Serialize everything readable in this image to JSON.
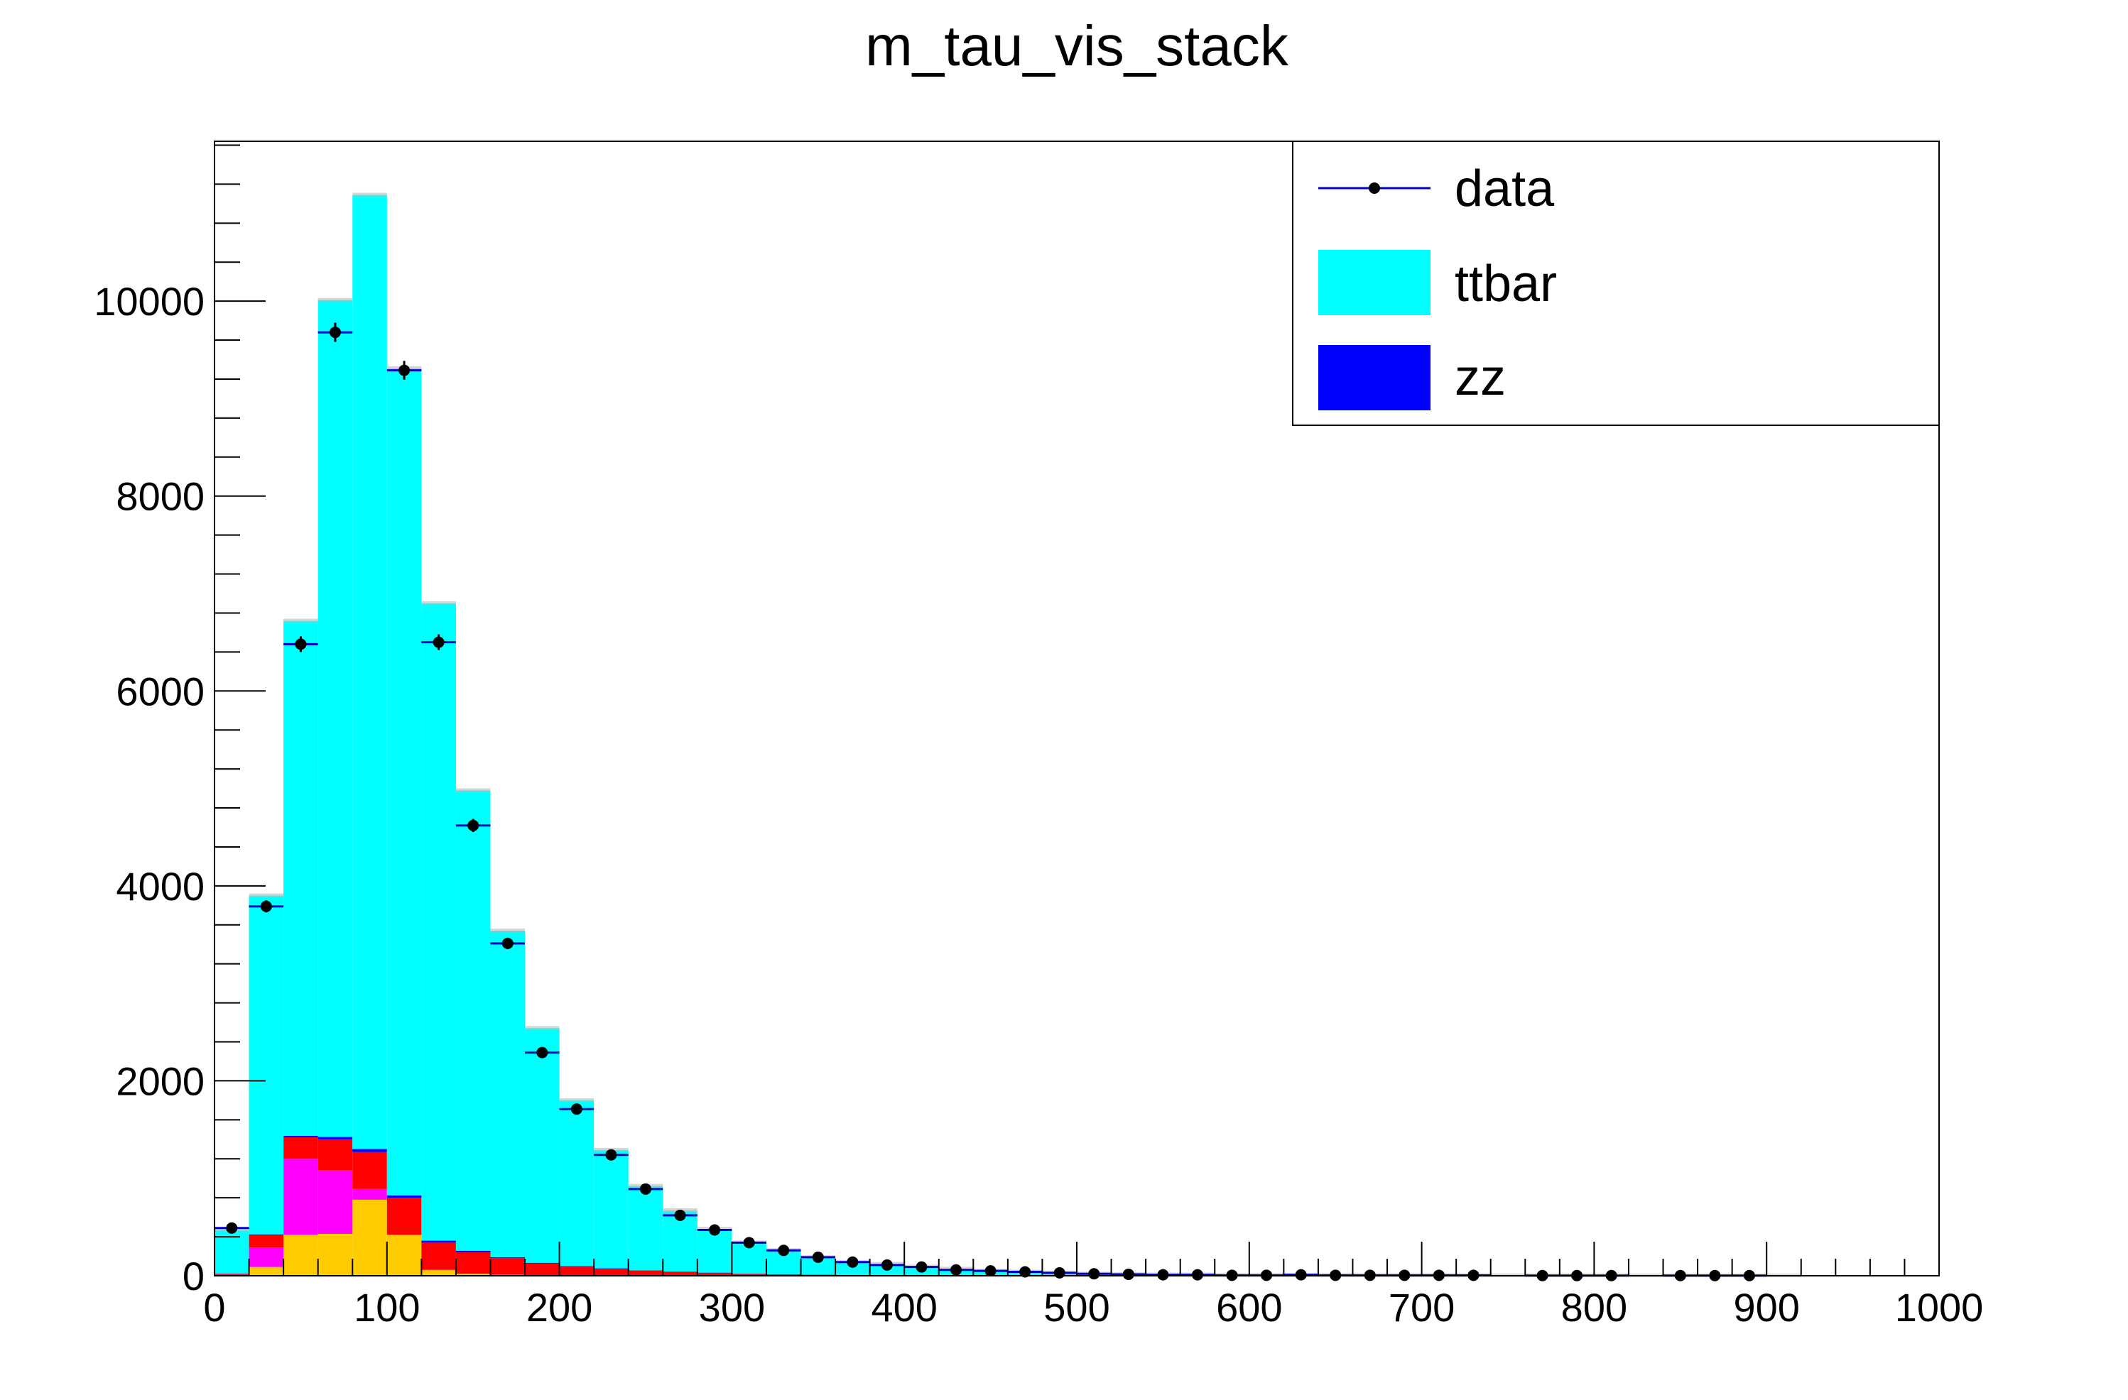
{
  "chart_data": {
    "type": "bar",
    "title": "m_tau_vis_stack",
    "xlabel": "",
    "ylabel": "",
    "xlim": [
      0,
      1000
    ],
    "ylim": [
      0,
      11640
    ],
    "bin_width": 20,
    "x_ticks": [
      0,
      100,
      200,
      300,
      400,
      500,
      600,
      700,
      800,
      900,
      1000
    ],
    "y_ticks": [
      0,
      2000,
      4000,
      6000,
      8000,
      10000
    ],
    "x": [
      10,
      30,
      50,
      70,
      90,
      110,
      130,
      150,
      170,
      190,
      210,
      230,
      250,
      270,
      290,
      310,
      330,
      350,
      370,
      390,
      410,
      430,
      450,
      470,
      490,
      510,
      530,
      550,
      570,
      590,
      610,
      630,
      650,
      670,
      690,
      710,
      730,
      750,
      770,
      790,
      810,
      830,
      850,
      870,
      890,
      910,
      930,
      950,
      970,
      990
    ],
    "series": [
      {
        "name": "",
        "color": "#ffcc00",
        "values": [
          5,
          90,
          420,
          430,
          780,
          420,
          60,
          20,
          10,
          5,
          3,
          2,
          1,
          1,
          0,
          0,
          0,
          0,
          0,
          0,
          0,
          0,
          0,
          0,
          0,
          0,
          0,
          0,
          0,
          0,
          0,
          0,
          0,
          0,
          0,
          0,
          0,
          0,
          0,
          0,
          0,
          0,
          0,
          0,
          0,
          0,
          0,
          0,
          0,
          0
        ]
      },
      {
        "name": "",
        "color": "#ff00ff",
        "values": [
          5,
          200,
          780,
          650,
          110,
          0,
          0,
          0,
          0,
          0,
          0,
          0,
          0,
          0,
          0,
          0,
          0,
          0,
          0,
          0,
          0,
          0,
          0,
          0,
          0,
          0,
          0,
          0,
          0,
          0,
          0,
          0,
          0,
          0,
          0,
          0,
          0,
          0,
          0,
          0,
          0,
          0,
          0,
          0,
          0,
          0,
          0,
          0,
          0,
          0
        ]
      },
      {
        "name": "",
        "color": "#ff0000",
        "values": [
          10,
          130,
          220,
          320,
          380,
          380,
          280,
          220,
          170,
          120,
          90,
          70,
          50,
          40,
          30,
          20,
          15,
          10,
          8,
          6,
          5,
          4,
          3,
          2,
          2,
          1,
          1,
          1,
          0,
          0,
          0,
          0,
          0,
          0,
          0,
          0,
          0,
          0,
          0,
          0,
          0,
          0,
          0,
          0,
          0,
          0,
          0,
          0,
          0,
          0
        ]
      },
      {
        "name": "zz",
        "color": "#0000ff",
        "values": [
          2,
          5,
          15,
          25,
          30,
          25,
          20,
          15,
          10,
          8,
          6,
          4,
          3,
          2,
          2,
          1,
          1,
          1,
          1,
          0,
          0,
          0,
          0,
          0,
          0,
          0,
          0,
          0,
          0,
          0,
          0,
          0,
          0,
          0,
          0,
          0,
          0,
          0,
          0,
          0,
          0,
          0,
          0,
          0,
          0,
          0,
          0,
          0,
          0,
          0
        ]
      },
      {
        "name": "ttbar",
        "color": "#00ffff",
        "values": [
          448,
          3475,
          5285,
          8585,
          9790,
          8485,
          6540,
          4725,
          3350,
          2407,
          1701,
          1214,
          866,
          627,
          448,
          319,
          244,
          179,
          131,
          114,
          85,
          66,
          47,
          38,
          28,
          19,
          14,
          9,
          10,
          5,
          5,
          5,
          4,
          3,
          3,
          3,
          2,
          2,
          2,
          2,
          2,
          1,
          1,
          1,
          1,
          1,
          0,
          0,
          0,
          0
        ]
      }
    ],
    "data": {
      "name": "data",
      "color": "#0000cc",
      "values": [
        490,
        3790,
        6480,
        9680,
        null,
        9290,
        6500,
        4620,
        3410,
        2290,
        1710,
        1240,
        890,
        620,
        470,
        340,
        260,
        190,
        140,
        110,
        90,
        60,
        50,
        40,
        30,
        20,
        15,
        10,
        10,
        5,
        5,
        10,
        5,
        5,
        5,
        5,
        5,
        null,
        2,
        2,
        2,
        null,
        2,
        2,
        2,
        null,
        null,
        null,
        null,
        null
      ]
    },
    "legend": {
      "position": "top-right",
      "entries": [
        {
          "label": "data",
          "style": "marker"
        },
        {
          "label": "ttbar",
          "style": "fill",
          "color": "#00ffff"
        },
        {
          "label": "zz",
          "style": "fill",
          "color": "#0000ff"
        }
      ]
    },
    "grid": false
  }
}
